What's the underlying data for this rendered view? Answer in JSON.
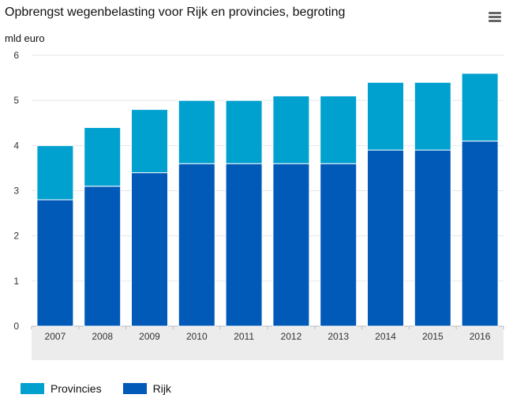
{
  "chart_data": {
    "type": "bar",
    "stacked": true,
    "title": "Opbrengst wegenbelasting voor Rijk en provincies, begroting",
    "ylabel": "mld euro",
    "xlabel": "",
    "ylim": [
      0,
      6
    ],
    "yticks": [
      0,
      1,
      2,
      3,
      4,
      5,
      6
    ],
    "grid": true,
    "legend_position": "bottom-left",
    "categories": [
      "2007",
      "2008",
      "2009",
      "2010",
      "2011",
      "2012",
      "2013",
      "2014",
      "2015",
      "2016"
    ],
    "series": [
      {
        "name": "Rijk",
        "color": "#0159b8",
        "values": [
          2.8,
          3.1,
          3.4,
          3.6,
          3.6,
          3.6,
          3.6,
          3.9,
          3.9,
          4.1
        ]
      },
      {
        "name": "Provincies",
        "color": "#00a0cf",
        "values": [
          1.2,
          1.3,
          1.4,
          1.4,
          1.4,
          1.5,
          1.5,
          1.5,
          1.5,
          1.5
        ]
      }
    ]
  },
  "legend": {
    "items": [
      {
        "label": "Provincies",
        "color": "#00a0cf"
      },
      {
        "label": "Rijk",
        "color": "#0159b8"
      }
    ]
  },
  "menu_icon": "hamburger-menu-icon"
}
